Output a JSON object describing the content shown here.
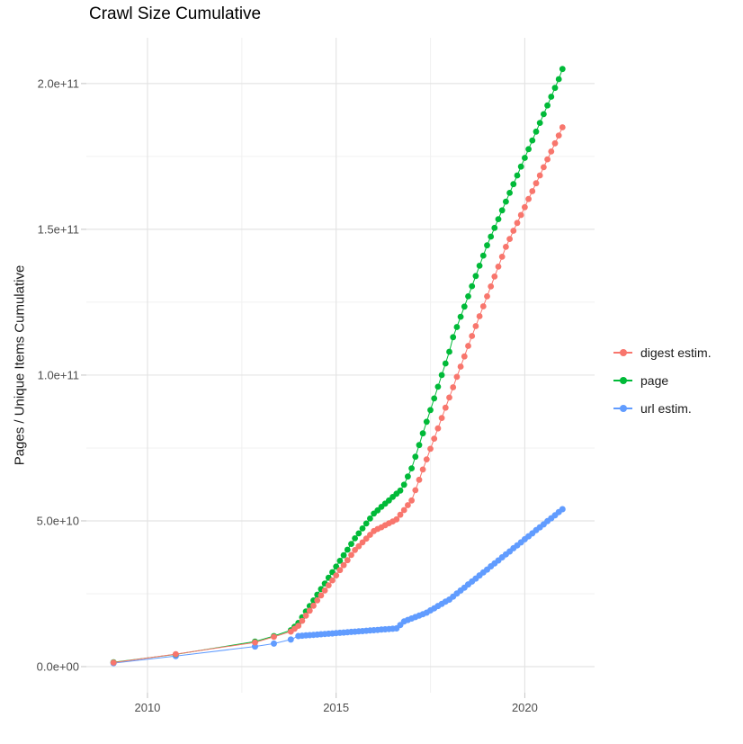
{
  "chart_data": {
    "type": "scatter",
    "title": "Crawl Size Cumulative",
    "xlabel": "",
    "ylabel": "Pages / Unique Items Cumulative",
    "legend_position": "right",
    "grid": true,
    "unit_multiplier": 1000000000.0,
    "xlim": [
      2008.38,
      2021.85
    ],
    "ylim": [
      -8.95,
      215.7
    ],
    "x_ticks": {
      "major": [
        2010,
        2015,
        2020
      ],
      "labels": [
        "2010",
        "2015",
        "2020"
      ],
      "minor": [
        2012.5,
        2017.5
      ]
    },
    "y_ticks": {
      "major": [
        0,
        50,
        100,
        150,
        200
      ],
      "labels": [
        "0.0e+00",
        "5.0e+10",
        "1.0e+11",
        "1.5e+11",
        "2.0e+11"
      ],
      "minor": [
        25,
        75,
        125,
        175
      ]
    },
    "series": [
      {
        "name": "digest estim.",
        "color": "#F8766D",
        "points": [
          [
            2009.1,
            1.4
          ],
          [
            2010.75,
            4.3
          ],
          [
            2012.85,
            8.3
          ],
          [
            2013.35,
            10.2
          ],
          [
            2013.8,
            12
          ],
          [
            2013.9,
            13
          ],
          [
            2014,
            14
          ],
          [
            2014.1,
            15.7
          ],
          [
            2014.2,
            17.5
          ],
          [
            2014.3,
            19.2
          ],
          [
            2014.4,
            20.9
          ],
          [
            2014.5,
            22.7
          ],
          [
            2014.6,
            24.4
          ],
          [
            2014.7,
            26.1
          ],
          [
            2014.8,
            27.9
          ],
          [
            2014.9,
            29.6
          ],
          [
            2015,
            31.3
          ],
          [
            2015.1,
            33.1
          ],
          [
            2015.2,
            34.8
          ],
          [
            2015.3,
            36.5
          ],
          [
            2015.4,
            38.3
          ],
          [
            2015.5,
            40
          ],
          [
            2015.6,
            41.3
          ],
          [
            2015.7,
            42.6
          ],
          [
            2015.8,
            43.9
          ],
          [
            2015.9,
            45.2
          ],
          [
            2016,
            46.5
          ],
          [
            2016.1,
            47.2
          ],
          [
            2016.2,
            47.8
          ],
          [
            2016.3,
            48.5
          ],
          [
            2016.4,
            49.2
          ],
          [
            2016.5,
            49.8
          ],
          [
            2016.6,
            50.5
          ],
          [
            2016.7,
            52.1
          ],
          [
            2016.8,
            53.7
          ],
          [
            2016.9,
            55.4
          ],
          [
            2017,
            57
          ],
          [
            2017.1,
            60.5
          ],
          [
            2017.2,
            64.1
          ],
          [
            2017.3,
            67.6
          ],
          [
            2017.4,
            71.1
          ],
          [
            2017.5,
            74.7
          ],
          [
            2017.6,
            78.2
          ],
          [
            2017.7,
            81.7
          ],
          [
            2017.8,
            85.3
          ],
          [
            2017.9,
            88.8
          ],
          [
            2018,
            92.3
          ],
          [
            2018.1,
            95.8
          ],
          [
            2018.2,
            99.4
          ],
          [
            2018.3,
            102.9
          ],
          [
            2018.4,
            106.4
          ],
          [
            2018.5,
            110
          ],
          [
            2018.6,
            113.4
          ],
          [
            2018.7,
            116.8
          ],
          [
            2018.8,
            120.2
          ],
          [
            2018.9,
            123.6
          ],
          [
            2019,
            127
          ],
          [
            2019.1,
            130.4
          ],
          [
            2019.2,
            133.8
          ],
          [
            2019.3,
            137.2
          ],
          [
            2019.4,
            140.6
          ],
          [
            2019.5,
            144
          ],
          [
            2019.6,
            146.7
          ],
          [
            2019.7,
            149.5
          ],
          [
            2019.8,
            152.2
          ],
          [
            2019.9,
            154.9
          ],
          [
            2020,
            157.6
          ],
          [
            2020.1,
            160.4
          ],
          [
            2020.2,
            163.1
          ],
          [
            2020.3,
            165.8
          ],
          [
            2020.4,
            168.5
          ],
          [
            2020.5,
            171.3
          ],
          [
            2020.6,
            174
          ],
          [
            2020.7,
            176.7
          ],
          [
            2020.8,
            179.5
          ],
          [
            2020.9,
            182.2
          ],
          [
            2021,
            185
          ]
        ]
      },
      {
        "name": "page",
        "color": "#00BA38",
        "points": [
          [
            2009.1,
            1.5
          ],
          [
            2010.75,
            4.2
          ],
          [
            2012.85,
            8.6
          ],
          [
            2013.35,
            10.5
          ],
          [
            2013.8,
            12.5
          ],
          [
            2013.9,
            13.7
          ],
          [
            2014,
            15
          ],
          [
            2014.1,
            16.9
          ],
          [
            2014.2,
            18.9
          ],
          [
            2014.3,
            20.8
          ],
          [
            2014.4,
            22.7
          ],
          [
            2014.5,
            24.7
          ],
          [
            2014.6,
            26.6
          ],
          [
            2014.7,
            28.5
          ],
          [
            2014.8,
            30.5
          ],
          [
            2014.9,
            32.4
          ],
          [
            2015,
            34.3
          ],
          [
            2015.1,
            36.3
          ],
          [
            2015.2,
            38.2
          ],
          [
            2015.3,
            40.1
          ],
          [
            2015.4,
            42.1
          ],
          [
            2015.5,
            44
          ],
          [
            2015.6,
            45.7
          ],
          [
            2015.7,
            47.4
          ],
          [
            2015.8,
            49.1
          ],
          [
            2015.9,
            50.8
          ],
          [
            2016,
            52.5
          ],
          [
            2016.1,
            53.6
          ],
          [
            2016.2,
            54.8
          ],
          [
            2016.3,
            55.9
          ],
          [
            2016.4,
            57
          ],
          [
            2016.5,
            58.2
          ],
          [
            2016.6,
            59.3
          ],
          [
            2016.7,
            60.4
          ],
          [
            2016.8,
            62.4
          ],
          [
            2016.9,
            65.2
          ],
          [
            2017,
            68
          ],
          [
            2017.1,
            72
          ],
          [
            2017.2,
            76
          ],
          [
            2017.3,
            80
          ],
          [
            2017.4,
            84
          ],
          [
            2017.5,
            88
          ],
          [
            2017.6,
            92
          ],
          [
            2017.7,
            96
          ],
          [
            2017.8,
            100
          ],
          [
            2017.9,
            104
          ],
          [
            2018,
            108
          ],
          [
            2018.1,
            113
          ],
          [
            2018.2,
            116.5
          ],
          [
            2018.3,
            120
          ],
          [
            2018.4,
            123.5
          ],
          [
            2018.5,
            127
          ],
          [
            2018.6,
            130.5
          ],
          [
            2018.7,
            134
          ],
          [
            2018.8,
            137.5
          ],
          [
            2018.9,
            141
          ],
          [
            2019,
            144.5
          ],
          [
            2019.1,
            147.5
          ],
          [
            2019.2,
            150.5
          ],
          [
            2019.3,
            153.5
          ],
          [
            2019.4,
            156.5
          ],
          [
            2019.5,
            159.5
          ],
          [
            2019.6,
            162.5
          ],
          [
            2019.7,
            165.5
          ],
          [
            2019.8,
            168.5
          ],
          [
            2019.9,
            171.5
          ],
          [
            2020,
            174.5
          ],
          [
            2020.1,
            177.5
          ],
          [
            2020.2,
            180.5
          ],
          [
            2020.3,
            183.5
          ],
          [
            2020.4,
            186.5
          ],
          [
            2020.5,
            189.5
          ],
          [
            2020.6,
            192.5
          ],
          [
            2020.7,
            195.5
          ],
          [
            2020.8,
            198.5
          ],
          [
            2020.9,
            201.5
          ],
          [
            2021,
            205
          ]
        ]
      },
      {
        "name": "url estim.",
        "color": "#619CFF",
        "points": [
          [
            2009.1,
            1.2
          ],
          [
            2010.75,
            3.6
          ],
          [
            2012.85,
            6.9
          ],
          [
            2013.35,
            7.9
          ],
          [
            2013.8,
            9.3
          ],
          [
            2014,
            10.5
          ],
          [
            2014.1,
            10.6
          ],
          [
            2014.2,
            10.7
          ],
          [
            2014.3,
            10.8
          ],
          [
            2014.4,
            10.9
          ],
          [
            2014.5,
            11
          ],
          [
            2014.6,
            11.1
          ],
          [
            2014.7,
            11.2
          ],
          [
            2014.8,
            11.3
          ],
          [
            2014.9,
            11.4
          ],
          [
            2015,
            11.5
          ],
          [
            2015.1,
            11.6
          ],
          [
            2015.2,
            11.7
          ],
          [
            2015.3,
            11.8
          ],
          [
            2015.4,
            11.9
          ],
          [
            2015.5,
            12
          ],
          [
            2015.6,
            12.1
          ],
          [
            2015.7,
            12.2
          ],
          [
            2015.8,
            12.3
          ],
          [
            2015.9,
            12.4
          ],
          [
            2016,
            12.5
          ],
          [
            2016.1,
            12.6
          ],
          [
            2016.2,
            12.7
          ],
          [
            2016.3,
            12.8
          ],
          [
            2016.4,
            12.9
          ],
          [
            2016.5,
            13
          ],
          [
            2016.6,
            13.1
          ],
          [
            2016.7,
            14.3
          ],
          [
            2016.8,
            15.5
          ],
          [
            2016.9,
            16
          ],
          [
            2017,
            16.5
          ],
          [
            2017.1,
            17
          ],
          [
            2017.2,
            17.5
          ],
          [
            2017.3,
            18
          ],
          [
            2017.4,
            18.5
          ],
          [
            2017.5,
            19.3
          ],
          [
            2017.6,
            20
          ],
          [
            2017.7,
            20.8
          ],
          [
            2017.8,
            21.5
          ],
          [
            2017.9,
            22.3
          ],
          [
            2018,
            23
          ],
          [
            2018.1,
            24
          ],
          [
            2018.2,
            25.1
          ],
          [
            2018.3,
            26.1
          ],
          [
            2018.4,
            27.1
          ],
          [
            2018.5,
            28.2
          ],
          [
            2018.6,
            29.2
          ],
          [
            2018.7,
            30.2
          ],
          [
            2018.8,
            31.3
          ],
          [
            2018.9,
            32.3
          ],
          [
            2019,
            33.3
          ],
          [
            2019.1,
            34.4
          ],
          [
            2019.2,
            35.4
          ],
          [
            2019.3,
            36.4
          ],
          [
            2019.4,
            37.5
          ],
          [
            2019.5,
            38.5
          ],
          [
            2019.6,
            39.5
          ],
          [
            2019.7,
            40.6
          ],
          [
            2019.8,
            41.6
          ],
          [
            2019.9,
            42.6
          ],
          [
            2020,
            43.7
          ],
          [
            2020.1,
            44.7
          ],
          [
            2020.2,
            45.7
          ],
          [
            2020.3,
            46.8
          ],
          [
            2020.4,
            47.8
          ],
          [
            2020.5,
            48.8
          ],
          [
            2020.6,
            49.9
          ],
          [
            2020.7,
            50.9
          ],
          [
            2020.8,
            51.9
          ],
          [
            2020.9,
            53
          ],
          [
            2021,
            54
          ]
        ]
      }
    ]
  }
}
